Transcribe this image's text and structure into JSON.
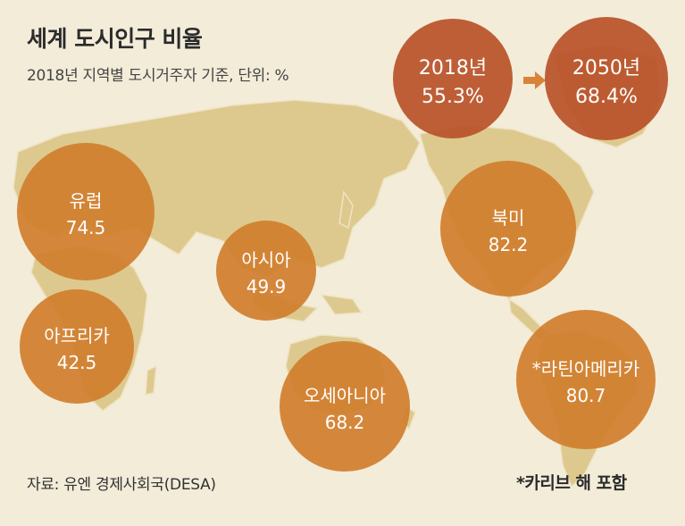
{
  "header": {
    "title": "세계 도시인구 비율",
    "subtitle": "2018년 지역별 도시거주자 기준, 단위: %"
  },
  "footer": {
    "source": "자료: 유엔 경제사회국(DESA)",
    "note": "*카리브 해 포함"
  },
  "colors": {
    "background": "#f3ecd9",
    "land": "#ddc98e",
    "region_bubble": "#d17f2e",
    "year_bubble": "#b9532a",
    "arrow": "#d9833a"
  },
  "chart_data": {
    "type": "bubble-map",
    "title": "세계 도시인구 비율",
    "subtitle": "2018년 지역별 도시거주자 기준, 단위: %",
    "unit": "%",
    "global": [
      {
        "label": "2018년",
        "value": 55.3,
        "display": "55.3%"
      },
      {
        "label": "2050년",
        "value": 68.4,
        "display": "68.4%"
      }
    ],
    "regions": [
      {
        "name": "유럽",
        "value": 74.5,
        "display": "74.5"
      },
      {
        "name": "아시아",
        "value": 49.9,
        "display": "49.9"
      },
      {
        "name": "아프리카",
        "value": 42.5,
        "display": "42.5"
      },
      {
        "name": "오세아니아",
        "value": 68.2,
        "display": "68.2"
      },
      {
        "name": "북미",
        "value": 82.2,
        "display": "82.2"
      },
      {
        "name": "*라틴아메리카",
        "value": 80.7,
        "display": "80.7"
      }
    ]
  }
}
